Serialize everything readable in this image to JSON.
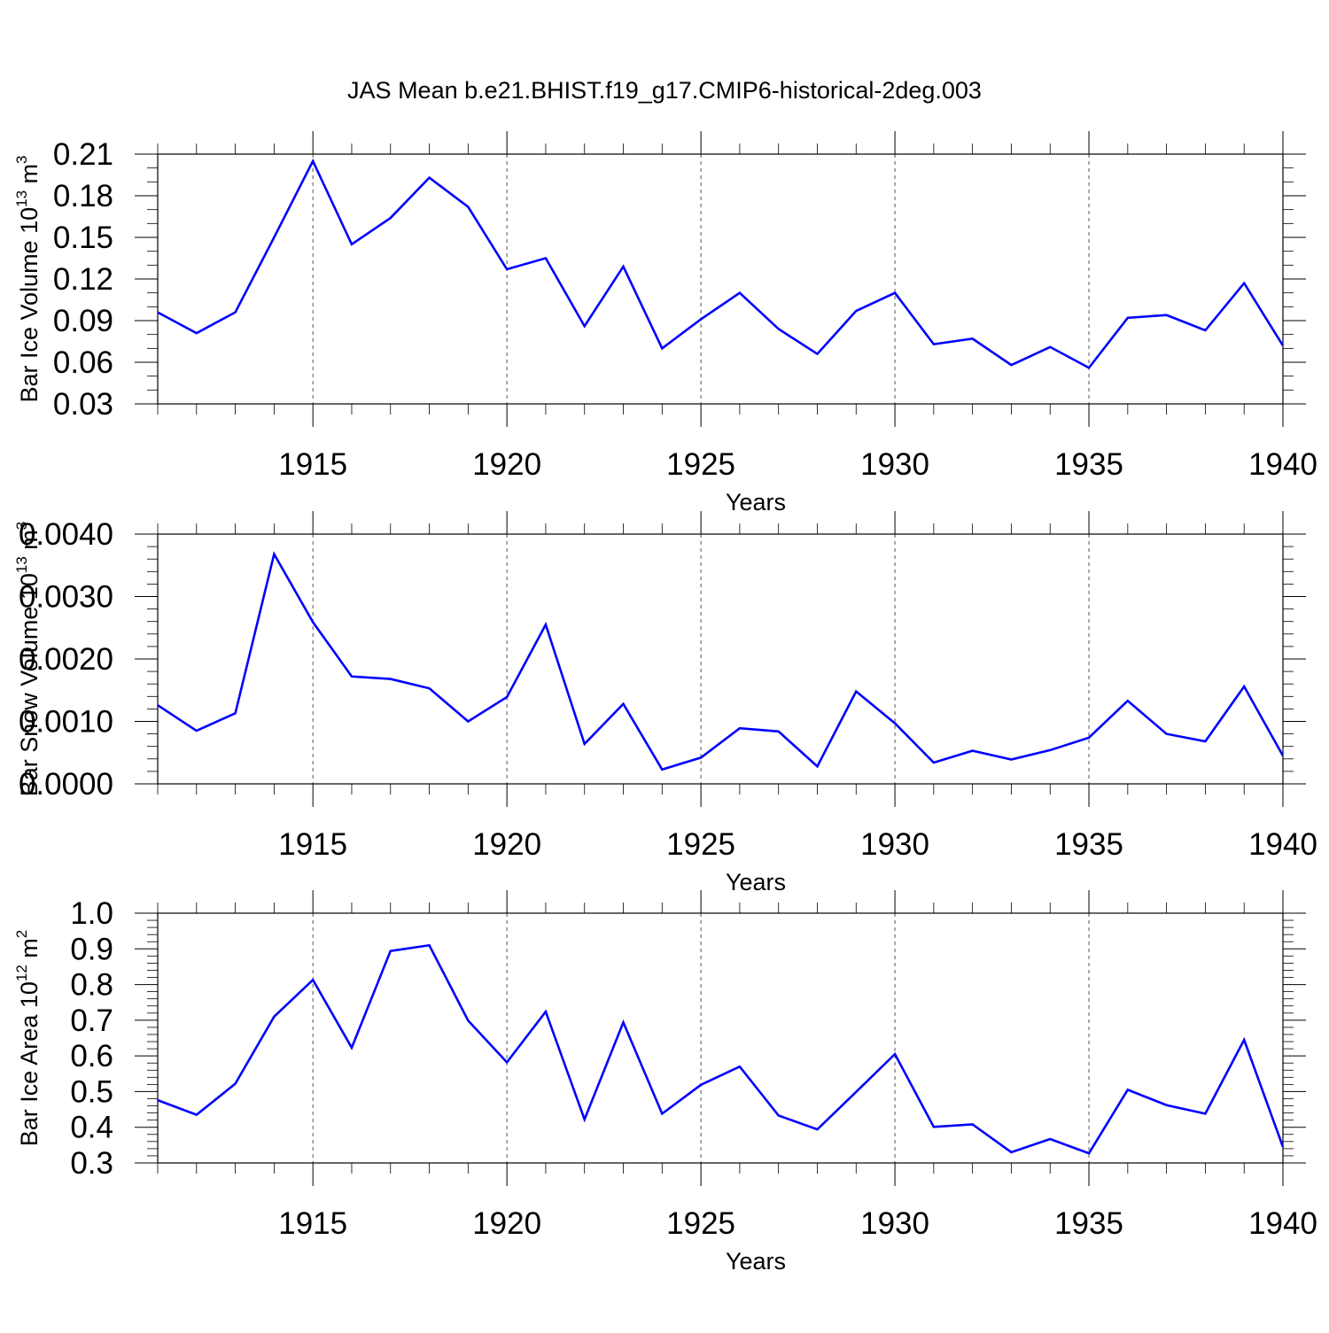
{
  "title": "JAS Mean b.e21.BHIST.f19_g17.CMIP6-historical-2deg.003",
  "line_color": "#0000ff",
  "chart_data": [
    {
      "type": "line",
      "ylabel": "Bar Ice Volume 10",
      "ylabel_exp": "13",
      "ylabel_unit": "m",
      "ylabel_unit_exp": "3",
      "xlabel": "Years",
      "xlim": [
        1911,
        1940
      ],
      "ylim": [
        0.03,
        0.21
      ],
      "yticks": [
        "0.03",
        "0.06",
        "0.09",
        "0.12",
        "0.15",
        "0.18",
        "0.21"
      ],
      "xticks": [
        "1915",
        "1920",
        "1925",
        "1930",
        "1935",
        "1940"
      ],
      "grid": "dashed vertical at labeled years",
      "series": [
        {
          "x": [
            1911,
            1912,
            1913,
            1914,
            1915,
            1916,
            1917,
            1918,
            1919,
            1920,
            1921,
            1922,
            1923,
            1924,
            1925,
            1926,
            1927,
            1928,
            1929,
            1930,
            1931,
            1932,
            1933,
            1934,
            1935,
            1936,
            1937,
            1938,
            1939,
            1940
          ],
          "values": [
            0.096,
            0.081,
            0.096,
            0.15,
            0.205,
            0.145,
            0.164,
            0.193,
            0.172,
            0.127,
            0.135,
            0.086,
            0.129,
            0.07,
            0.091,
            0.11,
            0.084,
            0.066,
            0.097,
            0.11,
            0.073,
            0.077,
            0.058,
            0.071,
            0.056,
            0.092,
            0.094,
            0.083,
            0.117,
            0.072
          ]
        }
      ]
    },
    {
      "type": "line",
      "ylabel": "Bar Snow Volume 10",
      "ylabel_exp": "13",
      "ylabel_unit": "m",
      "ylabel_unit_exp": "3",
      "xlabel": "Years",
      "xlim": [
        1911,
        1940
      ],
      "ylim": [
        0.0,
        0.004
      ],
      "yticks": [
        "0.0000",
        "0.0010",
        "0.0020",
        "0.0030",
        "0.0040"
      ],
      "xticks": [
        "1915",
        "1920",
        "1925",
        "1930",
        "1935",
        "1940"
      ],
      "grid": "dashed vertical at labeled years",
      "series": [
        {
          "x": [
            1911,
            1912,
            1913,
            1914,
            1915,
            1916,
            1917,
            1918,
            1919,
            1920,
            1921,
            1922,
            1923,
            1924,
            1925,
            1926,
            1927,
            1928,
            1929,
            1930,
            1931,
            1932,
            1933,
            1934,
            1935,
            1936,
            1937,
            1938,
            1939,
            1940
          ],
          "values": [
            0.00126,
            0.00085,
            0.00113,
            0.00368,
            0.00259,
            0.00172,
            0.00168,
            0.00153,
            0.001,
            0.00139,
            0.00255,
            0.00064,
            0.00128,
            0.00023,
            0.00042,
            0.00089,
            0.00084,
            0.00028,
            0.00148,
            0.00097,
            0.00034,
            0.00053,
            0.00039,
            0.00054,
            0.00074,
            0.00133,
            0.0008,
            0.00068,
            0.00156,
            0.00045
          ]
        }
      ]
    },
    {
      "type": "line",
      "ylabel": "Bar Ice Area 10",
      "ylabel_exp": "12",
      "ylabel_unit": "m",
      "ylabel_unit_exp": "2",
      "xlabel": "Years",
      "xlim": [
        1911,
        1940
      ],
      "ylim": [
        0.3,
        1.0
      ],
      "yticks": [
        "0.3",
        "0.4",
        "0.5",
        "0.6",
        "0.7",
        "0.8",
        "0.9",
        "1.0"
      ],
      "xticks": [
        "1915",
        "1920",
        "1925",
        "1930",
        "1935",
        "1940"
      ],
      "grid": "dashed vertical at labeled years",
      "series": [
        {
          "x": [
            1911,
            1912,
            1913,
            1914,
            1915,
            1916,
            1917,
            1918,
            1919,
            1920,
            1921,
            1922,
            1923,
            1924,
            1925,
            1926,
            1927,
            1928,
            1929,
            1930,
            1931,
            1932,
            1933,
            1934,
            1935,
            1936,
            1937,
            1938,
            1939,
            1940
          ],
          "values": [
            0.476,
            0.435,
            0.522,
            0.71,
            0.813,
            0.623,
            0.894,
            0.91,
            0.699,
            0.582,
            0.724,
            0.422,
            0.694,
            0.438,
            0.519,
            0.57,
            0.433,
            0.394,
            0.499,
            0.605,
            0.401,
            0.408,
            0.33,
            0.367,
            0.327,
            0.505,
            0.462,
            0.438,
            0.645,
            0.345
          ]
        }
      ]
    }
  ]
}
